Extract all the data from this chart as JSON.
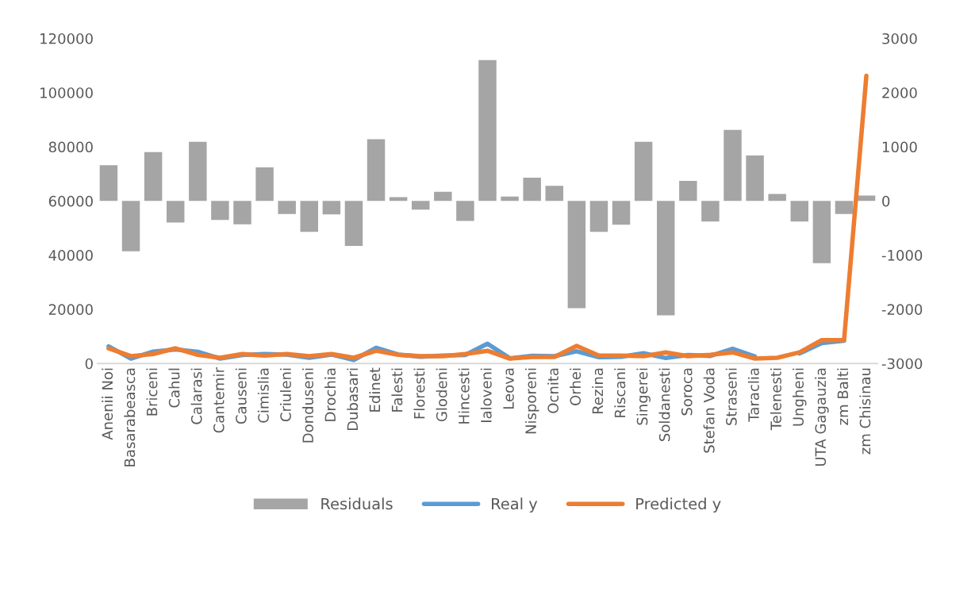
{
  "chart_data": {
    "type": "line",
    "categories": [
      "Anenii Noi",
      "Basarabeasca",
      "Briceni",
      "Cahul",
      "Calarasi",
      "Cantemir",
      "Causeni",
      "Cimislia",
      "Criuleni",
      "Donduseni",
      "Drochia",
      "Dubasari",
      "Edinet",
      "Falesti",
      "Floresti",
      "Glodeni",
      "Hincesti",
      "Ialoveni",
      "Leova",
      "Nisporeni",
      "Ocnita",
      "Orhei",
      "Rezina",
      "Riscani",
      "Singerei",
      "Soldanesti",
      "Soroca",
      "Stefan Voda",
      "Straseni",
      "Taraclia",
      "Telenesti",
      "Ungheni",
      "UTA Gagauzia",
      "zm Balti",
      "zm Chisinau"
    ],
    "series": [
      {
        "name": "Residuals",
        "type": "bar",
        "axis": "y2",
        "color": "#a5a5a5",
        "values": [
          660,
          -930,
          900,
          -400,
          1090,
          -350,
          -430,
          620,
          -240,
          -570,
          -250,
          -830,
          1140,
          70,
          -160,
          170,
          -370,
          2600,
          80,
          430,
          280,
          -1980,
          -570,
          -440,
          1090,
          -2110,
          370,
          -380,
          1310,
          840,
          130,
          -380,
          -1150,
          -240,
          100
        ]
      },
      {
        "name": "Real y",
        "color": "#5b9bd5",
        "values": [
          6300,
          1800,
          4400,
          5200,
          4300,
          1800,
          3100,
          3500,
          3300,
          2100,
          3300,
          1300,
          5800,
          3300,
          2500,
          2900,
          3100,
          7300,
          1900,
          2800,
          2700,
          4500,
          2300,
          2500,
          3800,
          2000,
          3100,
          2800,
          5400,
          2600,
          null,
          3700,
          7500,
          8400,
          null
        ]
      },
      {
        "name": "Predicted y",
        "color": "#ed7d31",
        "values": [
          5600,
          2700,
          3500,
          5600,
          3200,
          2100,
          3500,
          2900,
          3500,
          2700,
          3500,
          2100,
          4700,
          3200,
          2700,
          2700,
          3500,
          4700,
          1800,
          2400,
          2400,
          6500,
          2900,
          2900,
          2700,
          4100,
          2700,
          3200,
          4100,
          1800,
          2100,
          4100,
          8600,
          8600,
          106200
        ]
      }
    ],
    "ylim": [
      0,
      120000
    ],
    "yticks": [
      0,
      20000,
      40000,
      60000,
      80000,
      100000,
      120000
    ],
    "y2lim": [
      -3000,
      3000
    ],
    "y2ticks": [
      -3000,
      -2000,
      -1000,
      0,
      1000,
      2000,
      3000
    ],
    "grid": false,
    "legend": "bottom"
  }
}
